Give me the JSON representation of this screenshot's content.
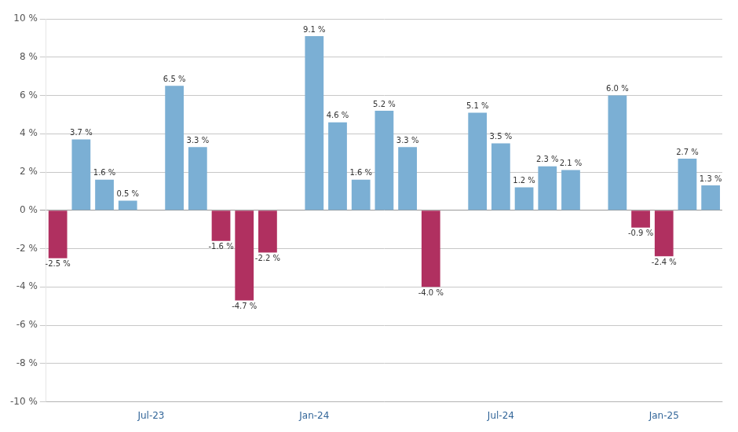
{
  "chart_data": {
    "type": "bar",
    "categories": [
      null,
      null,
      null,
      null,
      "Jul-23",
      null,
      null,
      null,
      null,
      null,
      null,
      "Jan-24",
      null,
      null,
      null,
      null,
      null,
      null,
      null,
      "Jul-24",
      null,
      null,
      null,
      null,
      null,
      null,
      "Jan-25",
      null,
      null
    ],
    "values": [
      -2.5,
      3.7,
      1.6,
      0.5,
      null,
      6.5,
      3.3,
      -1.6,
      -4.7,
      -2.2,
      null,
      9.1,
      4.6,
      1.6,
      5.2,
      3.3,
      -4.0,
      null,
      5.1,
      3.5,
      1.2,
      2.3,
      2.1,
      null,
      6.0,
      -0.9,
      -2.4,
      2.7,
      1.3
    ],
    "value_labels": [
      "-2.5 %",
      "3.7 %",
      "1.6 %",
      "0.5 %",
      null,
      "6.5 %",
      "3.3 %",
      "-1.6 %",
      "-4.7 %",
      "-2.2 %",
      null,
      "9.1 %",
      "4.6 %",
      "1.6 %",
      "5.2 %",
      "3.3 %",
      "-4.0 %",
      null,
      "5.1 %",
      "3.5 %",
      "1.2 %",
      "2.3 %",
      "2.1 %",
      null,
      "6.0 %",
      "-0.9 %",
      "-2.4 %",
      "2.7 %",
      "1.3 %"
    ],
    "colors": [
      "#B03060",
      "#7BAFD4",
      "#7BAFD4",
      "#7BAFD4",
      null,
      "#7BAFD4",
      "#7BAFD4",
      "#B03060",
      "#B03060",
      "#B03060",
      null,
      "#7BAFD4",
      "#7BAFD4",
      "#7BAFD4",
      "#7BAFD4",
      "#7BAFD4",
      "#B03060",
      null,
      "#7BAFD4",
      "#7BAFD4",
      "#7BAFD4",
      "#7BAFD4",
      "#7BAFD4",
      null,
      "#7BAFD4",
      "#B03060",
      "#B03060",
      "#7BAFD4",
      "#7BAFD4"
    ],
    "data_labels": true,
    "ylim": [
      -10,
      10
    ],
    "yticks": [
      {
        "value": -10,
        "label": "-10 %"
      },
      {
        "value": -8,
        "label": "-8 %"
      },
      {
        "value": -6,
        "label": "-6 %"
      },
      {
        "value": -4,
        "label": "-4 %"
      },
      {
        "value": -2,
        "label": "-2 %"
      },
      {
        "value": 0,
        "label": "0 %"
      },
      {
        "value": 2,
        "label": "2 %"
      },
      {
        "value": 4,
        "label": "4 %"
      },
      {
        "value": 6,
        "label": "6 %"
      },
      {
        "value": 8,
        "label": "8 %"
      },
      {
        "value": 10,
        "label": "10 %"
      }
    ],
    "grid": true
  }
}
